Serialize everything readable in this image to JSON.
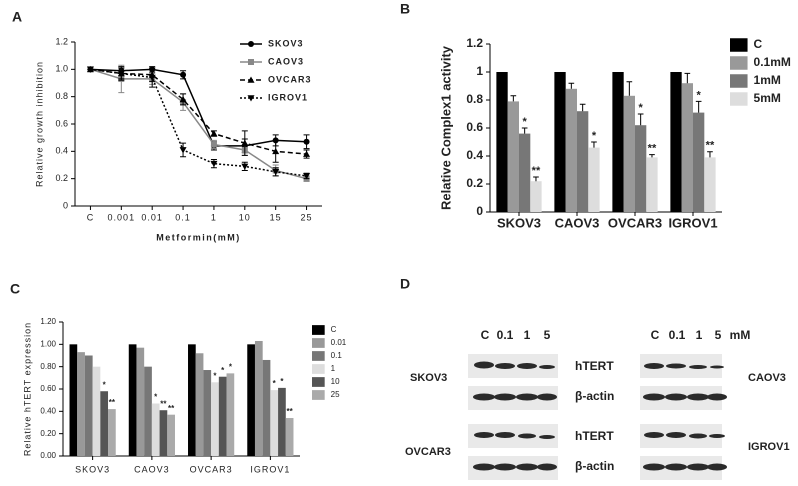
{
  "chart_data": [
    {
      "type": "line",
      "label": "A",
      "y_label": "Relative growth inhibition",
      "x_label": "Metformin(mM)",
      "categories": [
        "C",
        "0.001",
        "0.01",
        "0.1",
        "1",
        "10",
        "15",
        "25"
      ],
      "ylim": [
        0,
        1.2
      ],
      "yticks": [
        0,
        0.2,
        0.4,
        0.6,
        0.8,
        {
          "value": 1,
          "label": "1.0"
        },
        1.2
      ],
      "series": [
        {
          "name": "SKOV3",
          "color": "#000000",
          "dash": "solid",
          "marker": "circle",
          "values": [
            1.0,
            0.99,
            1.0,
            0.96,
            0.44,
            0.44,
            0.48,
            0.47
          ],
          "errors": [
            0,
            0.02,
            0.02,
            0.03,
            0.03,
            0.05,
            0.04,
            0.05
          ]
        },
        {
          "name": "CAOV3",
          "color": "#888888",
          "dash": "solid",
          "marker": "square",
          "values": [
            1.0,
            0.93,
            0.93,
            0.76,
            0.45,
            0.41,
            0.26,
            0.2
          ],
          "errors": [
            0,
            0.1,
            0.04,
            0.06,
            0.03,
            0.04,
            0.04,
            0.02
          ]
        },
        {
          "name": "OVCAR3",
          "color": "#000000",
          "dash": "dash",
          "marker": "triangle",
          "values": [
            1.0,
            0.97,
            0.96,
            0.78,
            0.53,
            0.46,
            0.4,
            0.38
          ],
          "errors": [
            0,
            0.05,
            0.05,
            0.04,
            0.02,
            0.09,
            0.08,
            0.03
          ]
        },
        {
          "name": "IGROV1",
          "color": "#000000",
          "dash": "dot",
          "marker": "triangle-down",
          "values": [
            1.0,
            0.97,
            0.94,
            0.41,
            0.31,
            0.29,
            0.25,
            0.22
          ],
          "errors": [
            0,
            0.04,
            0.07,
            0.05,
            0.03,
            0.03,
            0.03,
            0.02
          ]
        }
      ]
    },
    {
      "type": "bar",
      "label": "B",
      "y_label": "Relative Complex1 activity",
      "categories": [
        "SKOV3",
        "CAOV3",
        "OVCAR3",
        "IGROV1"
      ],
      "ylim": [
        0,
        1.2
      ],
      "yticks": [
        0,
        0.2,
        0.4,
        0.6,
        0.8,
        1,
        1.2
      ],
      "series": [
        {
          "name": "C",
          "color": "#000000",
          "values": [
            1,
            1,
            1,
            1
          ]
        },
        {
          "name": "0.1mM",
          "color": "#999999",
          "values": [
            0.79,
            0.88,
            0.83,
            0.92
          ],
          "errors": [
            0.04,
            0.04,
            0.1,
            0.07
          ]
        },
        {
          "name": "1mM",
          "color": "#777777",
          "values": [
            0.56,
            0.72,
            0.62,
            0.71
          ],
          "errors": [
            0.04,
            0.05,
            0.08,
            0.08
          ],
          "significance": [
            "*",
            null,
            "*",
            "*"
          ]
        },
        {
          "name": "5mM",
          "color": "#dddddd",
          "values": [
            0.22,
            0.46,
            0.39,
            0.39
          ],
          "errors": [
            0.03,
            0.04,
            0.02,
            0.04
          ],
          "significance": [
            "**",
            "*",
            "**",
            "**"
          ]
        }
      ]
    },
    {
      "type": "bar",
      "label": "C",
      "y_label": "Relative hTERT expression",
      "categories": [
        "SKOV3",
        "CAOV3",
        "OVCAR3",
        "IGROV1"
      ],
      "ylim": [
        0,
        1.2
      ],
      "yticks": [
        {
          "value": 0,
          "label": "0.00"
        },
        {
          "value": 0.2,
          "label": "0.20"
        },
        {
          "value": 0.4,
          "label": "0.40"
        },
        {
          "value": 0.6,
          "label": "0.60"
        },
        {
          "value": 0.8,
          "label": "0.80"
        },
        {
          "value": 1,
          "label": "1.00"
        },
        {
          "value": 1.2,
          "label": "1.20"
        }
      ],
      "series": [
        {
          "name": "C",
          "color": "#000000",
          "values": [
            1,
            1,
            1,
            1
          ]
        },
        {
          "name": "0.01",
          "color": "#999999",
          "values": [
            0.93,
            0.97,
            0.92,
            1.03
          ]
        },
        {
          "name": "0.1",
          "color": "#777777",
          "values": [
            0.9,
            0.8,
            0.77,
            0.86
          ]
        },
        {
          "name": "1",
          "color": "#dddddd",
          "values": [
            0.8,
            0.47,
            0.66,
            0.59
          ],
          "significance": [
            null,
            "*",
            "*",
            "*"
          ]
        },
        {
          "name": "10",
          "color": "#555555",
          "values": [
            0.58,
            0.41,
            0.71,
            0.61
          ],
          "significance": [
            "*",
            "**",
            "*",
            "*"
          ]
        },
        {
          "name": "25",
          "color": "#aaaaaa",
          "values": [
            0.42,
            0.37,
            0.74,
            0.34
          ],
          "significance": [
            "**",
            "**",
            "*",
            "**"
          ]
        }
      ]
    }
  ],
  "blot": {
    "label": "D",
    "lanes": [
      "C",
      "0.1",
      "1",
      "5"
    ],
    "unit": "mM",
    "proteins": [
      "hTERT",
      "β-actin"
    ],
    "cell_lines": [
      "SKOV3",
      "OVCAR3",
      "CAOV3",
      "IGROV1"
    ]
  }
}
